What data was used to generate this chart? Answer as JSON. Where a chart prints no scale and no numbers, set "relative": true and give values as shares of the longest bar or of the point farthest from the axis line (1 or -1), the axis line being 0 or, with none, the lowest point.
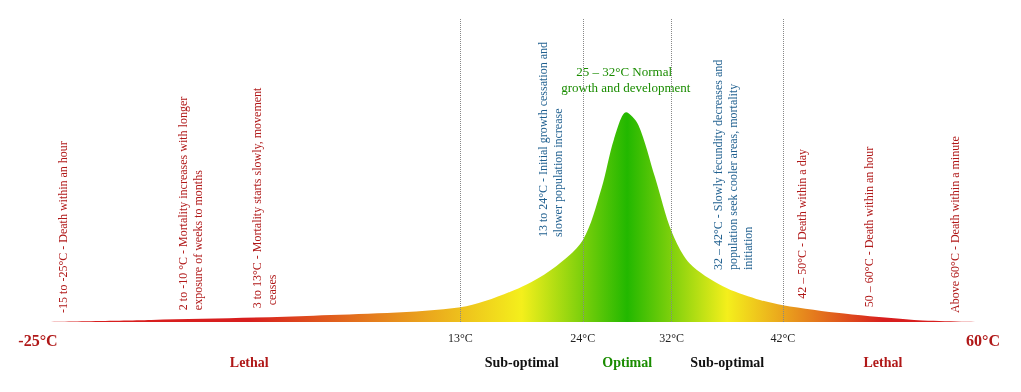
{
  "chart_data": {
    "type": "area",
    "relative": true,
    "x": [
      -25,
      -14.8,
      -0.2,
      13,
      18.2,
      21.2,
      24,
      25.7,
      26.8,
      27.9,
      29.0,
      30.5,
      32,
      33.6,
      36.6,
      39.6,
      42,
      47.5,
      53.8,
      60
    ],
    "values": [
      0,
      0.01,
      0.03,
      0.07,
      0.16,
      0.25,
      0.39,
      0.64,
      0.87,
      1.0,
      0.94,
      0.69,
      0.43,
      0.28,
      0.17,
      0.11,
      0.08,
      0.04,
      0.01,
      0
    ],
    "xlim": [
      -25,
      60
    ],
    "xticks": [
      {
        "value": -25,
        "label": "-25°C"
      },
      {
        "value": 13,
        "label": "13°C"
      },
      {
        "value": 24,
        "label": "24°C"
      },
      {
        "value": 32,
        "label": "32°C"
      },
      {
        "value": 42,
        "label": "42°C"
      },
      {
        "value": 60,
        "label": "60°C"
      }
    ],
    "ref_lines": [
      {
        "axis": "x",
        "value": 13,
        "line_style": "dotted",
        "color": "#888888"
      },
      {
        "axis": "x",
        "value": 24,
        "line_style": "dotted",
        "color": "#888888"
      },
      {
        "axis": "x",
        "value": 32,
        "line_style": "dotted",
        "color": "#888888"
      },
      {
        "axis": "x",
        "value": 42,
        "line_style": "dotted",
        "color": "#888888"
      }
    ],
    "annotations": [
      "-15 to -25°C - Death within an hour",
      "2 to -10 °C - Mortality increases with longer exposure of weeks to months",
      "3 to 13°C - Mortality starts slowly, movement ceases",
      "13 to 24°C - Initial growth cessation and slower population increase",
      "25 – 32°C Normal growth and development",
      "32 – 42°C - Slowly fecundity decreases and population seek cooler areas, mortality initiation",
      "42 – 50°C - Death within a day",
      "50 – 60°C - Death within an hour",
      "Above 60°C - Death within a minute",
      "Lethal",
      "Sub-optimal",
      "Optimal",
      "Sub-optimal",
      "Lethal"
    ],
    "grid": false
  }
}
